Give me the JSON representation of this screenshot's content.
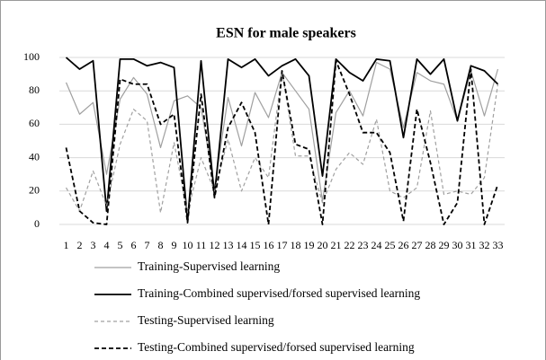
{
  "chart_data": {
    "type": "line",
    "title": "ESN for male speakers",
    "categories": [
      "1",
      "2",
      "3",
      "4",
      "5",
      "6",
      "7",
      "8",
      "9",
      "10",
      "11",
      "12",
      "13",
      "14",
      "15",
      "16",
      "17",
      "18",
      "19",
      "20",
      "21",
      "22",
      "23",
      "24",
      "25",
      "26",
      "27",
      "28",
      "29",
      "30",
      "31",
      "32",
      "33"
    ],
    "ylim": [
      0,
      100
    ],
    "yticks": [
      0,
      20,
      40,
      60,
      80,
      100
    ],
    "grid": true,
    "series": [
      {
        "name": "Training-Supervised learning",
        "color": "#a0a0a0",
        "dash": "solid",
        "values": [
          85,
          66,
          73,
          30,
          75,
          88,
          78,
          46,
          74,
          77,
          70,
          22,
          76,
          47,
          79,
          64,
          91,
          80,
          69,
          14,
          67,
          80,
          65,
          97,
          93,
          58,
          91,
          86,
          84,
          62,
          92,
          65,
          93
        ]
      },
      {
        "name": "Training-Combined supervised/forsed supervised learning",
        "color": "#000000",
        "dash": "solid",
        "values": [
          100,
          93,
          98,
          8,
          99,
          99,
          95,
          97,
          94,
          2,
          98,
          17,
          99,
          94,
          99,
          89,
          95,
          99,
          89,
          29,
          99,
          91,
          86,
          99,
          98,
          52,
          99,
          90,
          99,
          62,
          95,
          92,
          84
        ]
      },
      {
        "name": "Testing-Supervised learning",
        "color": "#a0a0a0",
        "dash": "dashed",
        "values": [
          22,
          8,
          32,
          11,
          48,
          69,
          62,
          7,
          49,
          7,
          40,
          20,
          51,
          20,
          40,
          28,
          92,
          41,
          41,
          13,
          33,
          43,
          36,
          63,
          20,
          16,
          22,
          68,
          18,
          20,
          18,
          28,
          84
        ]
      },
      {
        "name": "Testing-Combined supervised/forsed supervised learning",
        "color": "#000000",
        "dash": "dashed",
        "values": [
          46,
          8,
          1,
          0,
          87,
          84,
          84,
          60,
          66,
          1,
          78,
          16,
          58,
          73,
          55,
          0,
          92,
          48,
          45,
          0,
          98,
          78,
          55,
          55,
          43,
          2,
          69,
          37,
          0,
          13,
          93,
          0,
          24
        ]
      }
    ]
  }
}
